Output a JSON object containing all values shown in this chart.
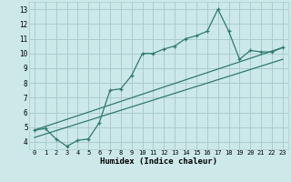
{
  "xlabel": "Humidex (Indice chaleur)",
  "xlim": [
    -0.5,
    23.5
  ],
  "ylim": [
    3.5,
    13.5
  ],
  "xticks": [
    0,
    1,
    2,
    3,
    4,
    5,
    6,
    7,
    8,
    9,
    10,
    11,
    12,
    13,
    14,
    15,
    16,
    17,
    18,
    19,
    20,
    21,
    22,
    23
  ],
  "yticks": [
    4,
    5,
    6,
    7,
    8,
    9,
    10,
    11,
    12,
    13
  ],
  "bg_color": "#cce8e8",
  "grid_color": "#aacccc",
  "line_color": "#2e7b6e",
  "line1_x": [
    0,
    1,
    2,
    3,
    4,
    5,
    6,
    7,
    8,
    9,
    10,
    11,
    12,
    13,
    14,
    15,
    16,
    17,
    18,
    19,
    20,
    21,
    22,
    23
  ],
  "line1_y": [
    4.8,
    4.9,
    4.2,
    3.7,
    4.1,
    4.2,
    5.3,
    7.5,
    7.6,
    8.5,
    10.0,
    10.0,
    10.3,
    10.5,
    11.0,
    11.2,
    11.5,
    13.0,
    11.5,
    9.6,
    10.2,
    10.1,
    10.1,
    10.4
  ],
  "line2_x": [
    0,
    23
  ],
  "line2_y": [
    4.8,
    10.4
  ],
  "line3_x": [
    0,
    23
  ],
  "line3_y": [
    4.3,
    9.6
  ]
}
